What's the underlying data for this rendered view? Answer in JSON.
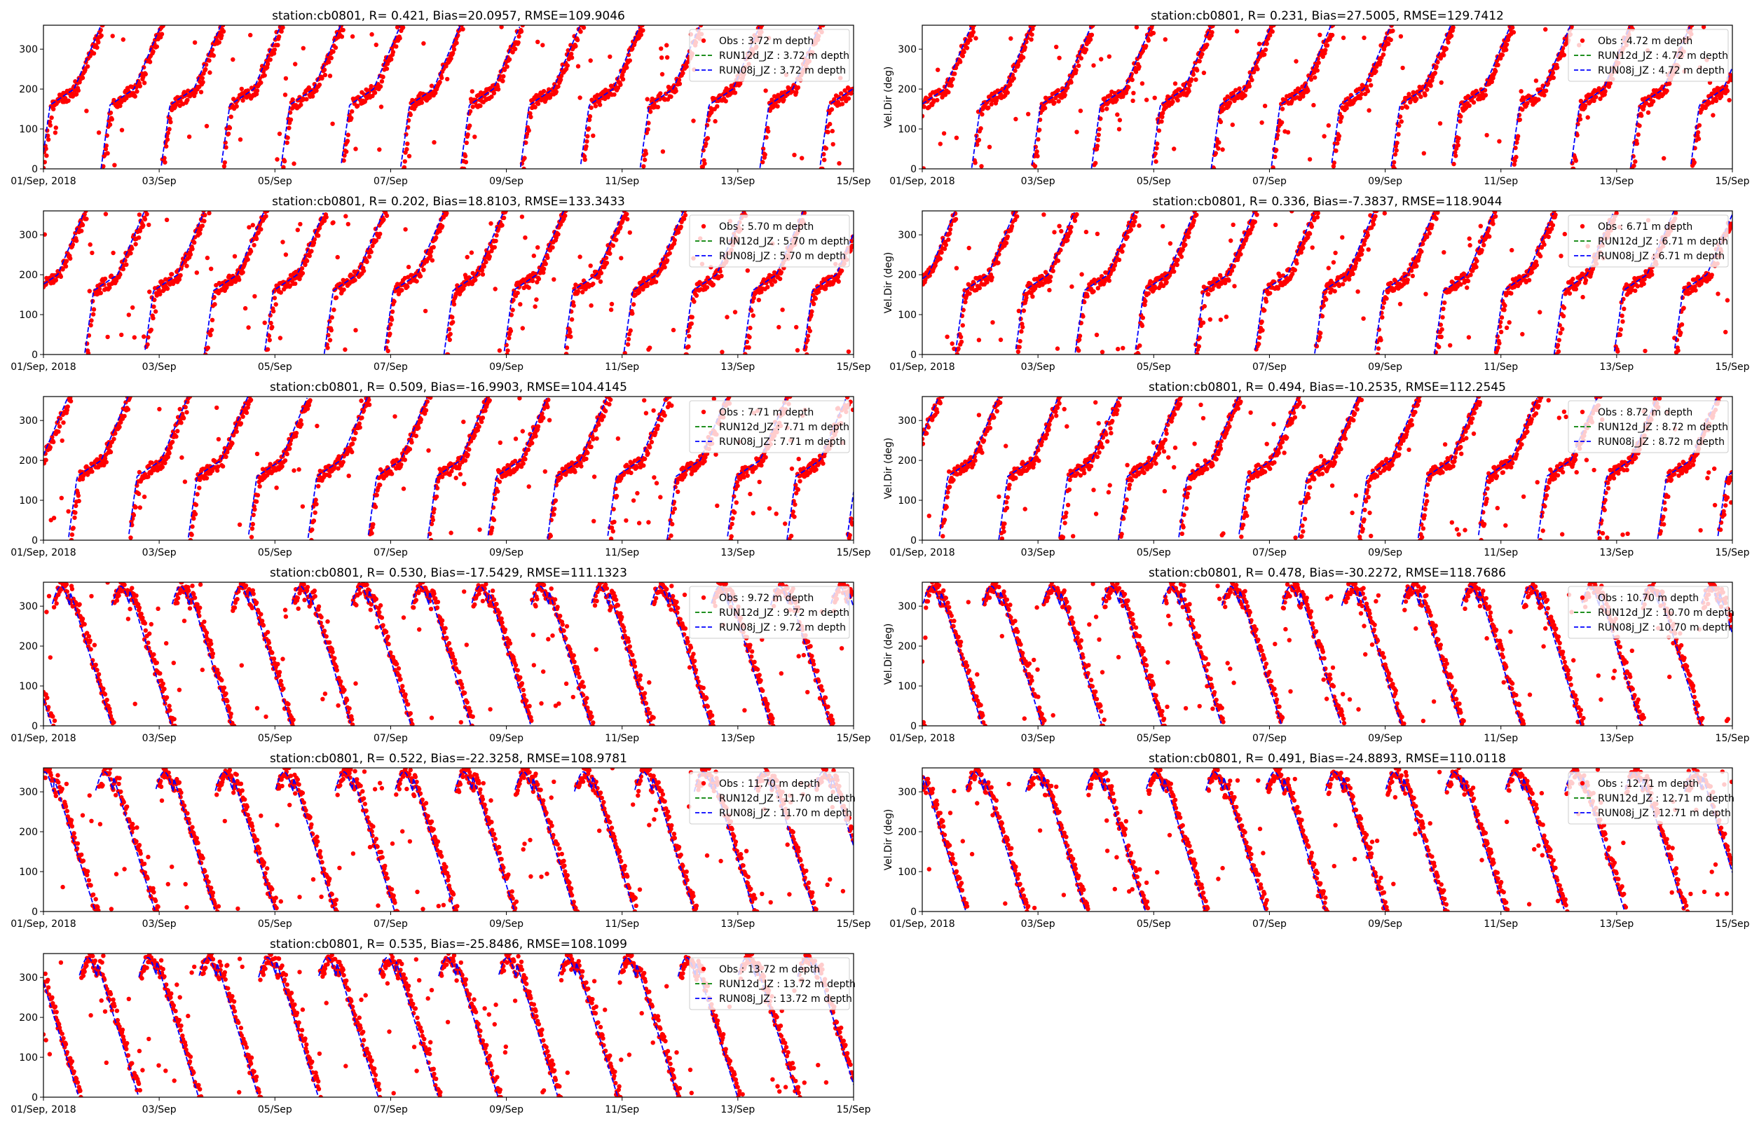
{
  "chart_data": [
    {
      "type": "scatter",
      "title": "station:cb0801, R= 0.421, Bias=20.0957, RMSE=109.9046",
      "ylabel": "",
      "ylim": [
        0,
        360
      ],
      "yticks": [
        0,
        100,
        200,
        300
      ],
      "xlim": [
        "2018-09-01",
        "2018-09-15"
      ],
      "xtick_labels": [
        "01/Sep, 2018",
        "03/Sep",
        "05/Sep",
        "07/Sep",
        "09/Sep",
        "11/Sep",
        "13/Sep",
        "15/Sep"
      ],
      "legend_position": "upper-right",
      "series": [
        {
          "name": "Obs : 3.72 m depth",
          "color": "#ff0000",
          "style": "points"
        },
        {
          "name": "RUN12d_JZ : 3.72 m depth",
          "color": "#008000",
          "style": "dashed"
        },
        {
          "name": "RUN08j_JZ : 3.72 m depth",
          "color": "#0000ff",
          "style": "dashed"
        }
      ]
    },
    {
      "type": "scatter",
      "title": "station:cb0801, R= 0.231, Bias=27.5005, RMSE=129.7412",
      "ylabel": "Vel.Dir (deg)",
      "ylim": [
        0,
        360
      ],
      "yticks": [
        0,
        100,
        200,
        300
      ],
      "xlim": [
        "2018-09-01",
        "2018-09-15"
      ],
      "xtick_labels": [
        "01/Sep, 2018",
        "03/Sep",
        "05/Sep",
        "07/Sep",
        "09/Sep",
        "11/Sep",
        "13/Sep",
        "15/Sep"
      ],
      "legend_position": "upper-right",
      "series": [
        {
          "name": "Obs : 4.72 m depth",
          "color": "#ff0000",
          "style": "points"
        },
        {
          "name": "RUN12d_JZ : 4.72 m depth",
          "color": "#008000",
          "style": "dashed"
        },
        {
          "name": "RUN08j_JZ : 4.72 m depth",
          "color": "#0000ff",
          "style": "dashed"
        }
      ]
    },
    {
      "type": "scatter",
      "title": "station:cb0801, R= 0.202, Bias=18.8103, RMSE=133.3433",
      "ylabel": "",
      "ylim": [
        0,
        360
      ],
      "yticks": [
        0,
        100,
        200,
        300
      ],
      "xlim": [
        "2018-09-01",
        "2018-09-15"
      ],
      "xtick_labels": [
        "01/Sep, 2018",
        "03/Sep",
        "05/Sep",
        "07/Sep",
        "09/Sep",
        "11/Sep",
        "13/Sep",
        "15/Sep"
      ],
      "legend_position": "upper-right",
      "series": [
        {
          "name": "Obs : 5.70 m depth",
          "color": "#ff0000",
          "style": "points"
        },
        {
          "name": "RUN12d_JZ : 5.70 m depth",
          "color": "#008000",
          "style": "dashed"
        },
        {
          "name": "RUN08j_JZ : 5.70 m depth",
          "color": "#0000ff",
          "style": "dashed"
        }
      ]
    },
    {
      "type": "scatter",
      "title": "station:cb0801, R= 0.336, Bias=-7.3837, RMSE=118.9044",
      "ylabel": "Vel.Dir (deg)",
      "ylim": [
        0,
        360
      ],
      "yticks": [
        0,
        100,
        200,
        300
      ],
      "xlim": [
        "2018-09-01",
        "2018-09-15"
      ],
      "xtick_labels": [
        "01/Sep, 2018",
        "03/Sep",
        "05/Sep",
        "07/Sep",
        "09/Sep",
        "11/Sep",
        "13/Sep",
        "15/Sep"
      ],
      "legend_position": "upper-right",
      "series": [
        {
          "name": "Obs : 6.71 m depth",
          "color": "#ff0000",
          "style": "points"
        },
        {
          "name": "RUN12d_JZ : 6.71 m depth",
          "color": "#008000",
          "style": "dashed"
        },
        {
          "name": "RUN08j_JZ : 6.71 m depth",
          "color": "#0000ff",
          "style": "dashed"
        }
      ]
    },
    {
      "type": "scatter",
      "title": "station:cb0801, R= 0.509, Bias=-16.9903, RMSE=104.4145",
      "ylabel": "",
      "ylim": [
        0,
        360
      ],
      "yticks": [
        0,
        100,
        200,
        300
      ],
      "xlim": [
        "2018-09-01",
        "2018-09-15"
      ],
      "xtick_labels": [
        "01/Sep, 2018",
        "03/Sep",
        "05/Sep",
        "07/Sep",
        "09/Sep",
        "11/Sep",
        "13/Sep",
        "15/Sep"
      ],
      "legend_position": "upper-right",
      "series": [
        {
          "name": "Obs : 7.71 m depth",
          "color": "#ff0000",
          "style": "points"
        },
        {
          "name": "RUN12d_JZ : 7.71 m depth",
          "color": "#008000",
          "style": "dashed"
        },
        {
          "name": "RUN08j_JZ : 7.71 m depth",
          "color": "#0000ff",
          "style": "dashed"
        }
      ]
    },
    {
      "type": "scatter",
      "title": "station:cb0801, R= 0.494, Bias=-10.2535, RMSE=112.2545",
      "ylabel": "Vel.Dir (deg)",
      "ylim": [
        0,
        360
      ],
      "yticks": [
        0,
        100,
        200,
        300
      ],
      "xlim": [
        "2018-09-01",
        "2018-09-15"
      ],
      "xtick_labels": [
        "01/Sep, 2018",
        "03/Sep",
        "05/Sep",
        "07/Sep",
        "09/Sep",
        "11/Sep",
        "13/Sep",
        "15/Sep"
      ],
      "legend_position": "upper-right",
      "series": [
        {
          "name": "Obs : 8.72 m depth",
          "color": "#ff0000",
          "style": "points"
        },
        {
          "name": "RUN12d_JZ : 8.72 m depth",
          "color": "#008000",
          "style": "dashed"
        },
        {
          "name": "RUN08j_JZ : 8.72 m depth",
          "color": "#0000ff",
          "style": "dashed"
        }
      ]
    },
    {
      "type": "scatter",
      "title": "station:cb0801, R= 0.530, Bias=-17.5429, RMSE=111.1323",
      "ylabel": "",
      "ylim": [
        0,
        360
      ],
      "yticks": [
        0,
        100,
        200,
        300
      ],
      "xlim": [
        "2018-09-01",
        "2018-09-15"
      ],
      "xtick_labels": [
        "01/Sep, 2018",
        "03/Sep",
        "05/Sep",
        "07/Sep",
        "09/Sep",
        "11/Sep",
        "13/Sep",
        "15/Sep"
      ],
      "legend_position": "upper-right",
      "series": [
        {
          "name": "Obs : 9.72 m depth",
          "color": "#ff0000",
          "style": "points"
        },
        {
          "name": "RUN12d_JZ : 9.72 m depth",
          "color": "#008000",
          "style": "dashed"
        },
        {
          "name": "RUN08j_JZ : 9.72 m depth",
          "color": "#0000ff",
          "style": "dashed"
        }
      ]
    },
    {
      "type": "scatter",
      "title": "station:cb0801, R= 0.478, Bias=-30.2272, RMSE=118.7686",
      "ylabel": "Vel.Dir (deg)",
      "ylim": [
        0,
        360
      ],
      "yticks": [
        0,
        100,
        200,
        300
      ],
      "xlim": [
        "2018-09-01",
        "2018-09-15"
      ],
      "xtick_labels": [
        "01/Sep, 2018",
        "03/Sep",
        "05/Sep",
        "07/Sep",
        "09/Sep",
        "11/Sep",
        "13/Sep",
        "15/Sep"
      ],
      "legend_position": "upper-right",
      "series": [
        {
          "name": "Obs : 10.70 m depth",
          "color": "#ff0000",
          "style": "points"
        },
        {
          "name": "RUN12d_JZ : 10.70 m depth",
          "color": "#008000",
          "style": "dashed"
        },
        {
          "name": "RUN08j_JZ : 10.70 m depth",
          "color": "#0000ff",
          "style": "dashed"
        }
      ]
    },
    {
      "type": "scatter",
      "title": "station:cb0801, R= 0.522, Bias=-22.3258, RMSE=108.9781",
      "ylabel": "",
      "ylim": [
        0,
        360
      ],
      "yticks": [
        0,
        100,
        200,
        300
      ],
      "xlim": [
        "2018-09-01",
        "2018-09-15"
      ],
      "xtick_labels": [
        "01/Sep, 2018",
        "03/Sep",
        "05/Sep",
        "07/Sep",
        "09/Sep",
        "11/Sep",
        "13/Sep",
        "15/Sep"
      ],
      "legend_position": "upper-right",
      "series": [
        {
          "name": "Obs : 11.70 m depth",
          "color": "#ff0000",
          "style": "points"
        },
        {
          "name": "RUN12d_JZ : 11.70 m depth",
          "color": "#008000",
          "style": "dashed"
        },
        {
          "name": "RUN08j_JZ : 11.70 m depth",
          "color": "#0000ff",
          "style": "dashed"
        }
      ]
    },
    {
      "type": "scatter",
      "title": "station:cb0801, R= 0.491, Bias=-24.8893, RMSE=110.0118",
      "ylabel": "Vel.Dir (deg)",
      "ylim": [
        0,
        360
      ],
      "yticks": [
        0,
        100,
        200,
        300
      ],
      "xlim": [
        "2018-09-01",
        "2018-09-15"
      ],
      "xtick_labels": [
        "01/Sep, 2018",
        "03/Sep",
        "05/Sep",
        "07/Sep",
        "09/Sep",
        "11/Sep",
        "13/Sep",
        "15/Sep"
      ],
      "legend_position": "upper-right",
      "series": [
        {
          "name": "Obs : 12.71 m depth",
          "color": "#ff0000",
          "style": "points"
        },
        {
          "name": "RUN12d_JZ : 12.71 m depth",
          "color": "#008000",
          "style": "dashed"
        },
        {
          "name": "RUN08j_JZ : 12.71 m depth",
          "color": "#0000ff",
          "style": "dashed"
        }
      ]
    },
    {
      "type": "scatter",
      "title": "station:cb0801, R= 0.535, Bias=-25.8486, RMSE=108.1099",
      "ylabel": "",
      "ylim": [
        0,
        360
      ],
      "yticks": [
        0,
        100,
        200,
        300
      ],
      "xlim": [
        "2018-09-01",
        "2018-09-15"
      ],
      "xtick_labels": [
        "01/Sep, 2018",
        "03/Sep",
        "05/Sep",
        "07/Sep",
        "09/Sep",
        "11/Sep",
        "13/Sep",
        "15/Sep"
      ],
      "legend_position": "upper-right",
      "series": [
        {
          "name": "Obs : 13.72 m depth",
          "color": "#ff0000",
          "style": "points"
        },
        {
          "name": "RUN12d_JZ : 13.72 m depth",
          "color": "#008000",
          "style": "dashed"
        },
        {
          "name": "RUN08j_JZ : 13.72 m depth",
          "color": "#0000ff",
          "style": "dashed"
        }
      ]
    }
  ]
}
